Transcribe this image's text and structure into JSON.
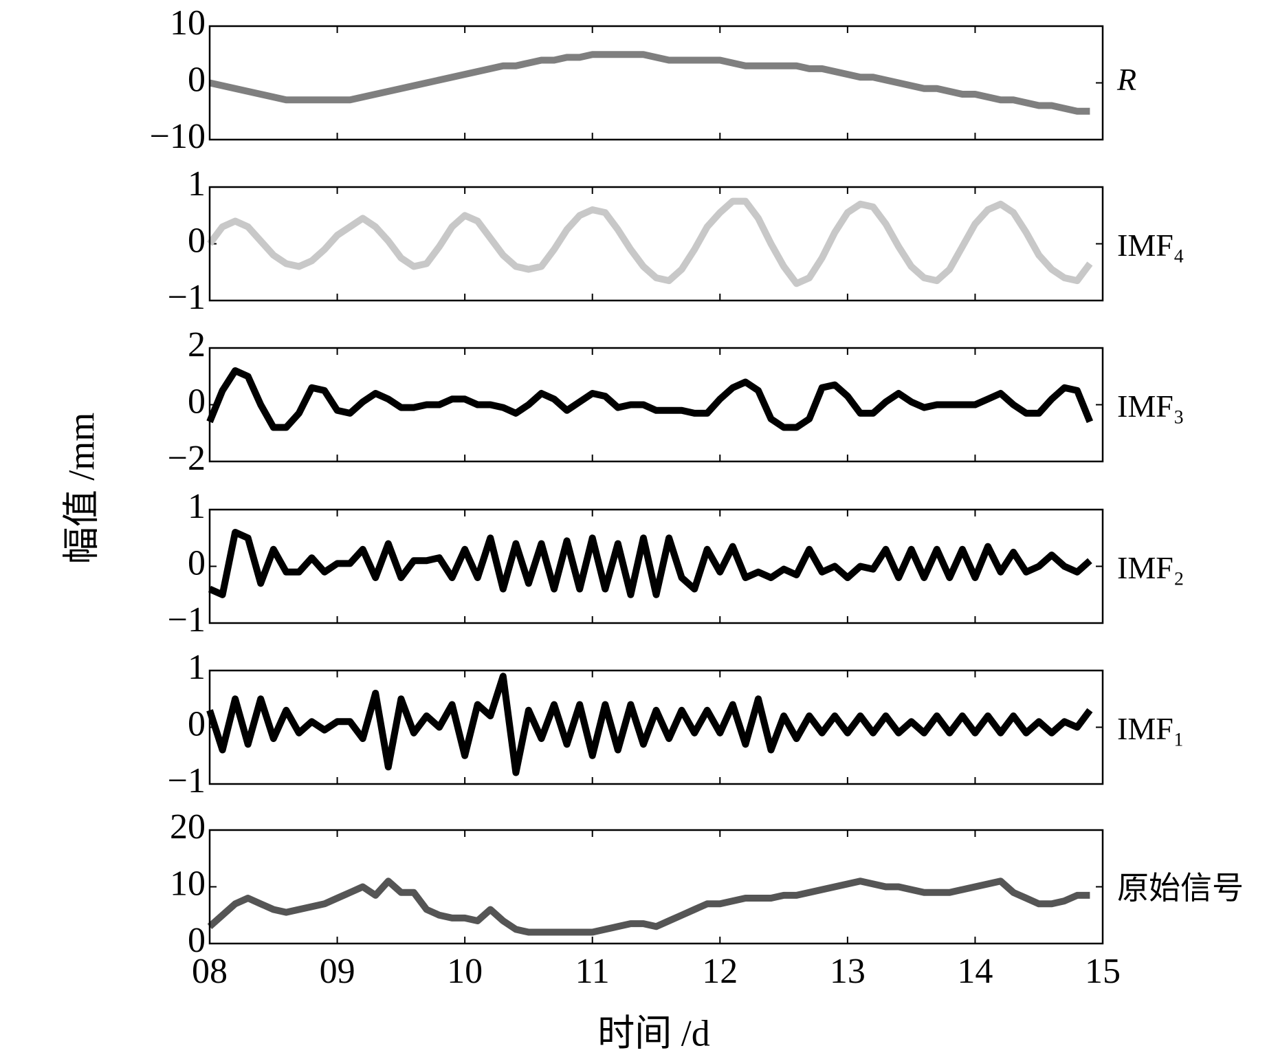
{
  "ylabel": "幅值 /mm",
  "xlabel": "时间 /d",
  "chart_data": [
    {
      "type": "line",
      "label": "R",
      "color": "#7f7f7f",
      "xlim": [
        8,
        15
      ],
      "ylim": [
        -10,
        10
      ],
      "yticks": [
        {
          "value": -10,
          "label": "−10"
        },
        0,
        10
      ],
      "x": [
        8,
        8.1,
        8.2,
        8.3,
        8.4,
        8.5,
        8.6,
        8.7,
        8.8,
        8.9,
        9,
        9.1,
        9.2,
        9.3,
        9.4,
        9.5,
        9.6,
        9.7,
        9.8,
        9.9,
        10,
        10.1,
        10.2,
        10.3,
        10.4,
        10.5,
        10.6,
        10.7,
        10.8,
        10.9,
        11,
        11.1,
        11.2,
        11.3,
        11.4,
        11.5,
        11.6,
        11.7,
        11.8,
        11.9,
        12,
        12.1,
        12.2,
        12.3,
        12.4,
        12.5,
        12.6,
        12.7,
        12.8,
        12.9,
        13,
        13.1,
        13.2,
        13.3,
        13.4,
        13.5,
        13.6,
        13.7,
        13.8,
        13.9,
        14,
        14.1,
        14.2,
        14.3,
        14.4,
        14.5,
        14.6,
        14.7,
        14.8,
        14.9
      ],
      "values": [
        0,
        -0.5,
        -1,
        -1.5,
        -2,
        -2.5,
        -3,
        -3,
        -3,
        -3,
        -3,
        -3,
        -2.5,
        -2,
        -1.5,
        -1,
        -0.5,
        0,
        0.5,
        1,
        1.5,
        2,
        2.5,
        3,
        3,
        3.5,
        4,
        4,
        4.5,
        4.5,
        5,
        5,
        5,
        5,
        5,
        4.5,
        4,
        4,
        4,
        4,
        4,
        3.5,
        3,
        3,
        3,
        3,
        3,
        2.5,
        2.5,
        2,
        1.5,
        1,
        1,
        0.5,
        0,
        -0.5,
        -1,
        -1,
        -1.5,
        -2,
        -2,
        -2.5,
        -3,
        -3,
        -3.5,
        -4,
        -4,
        -4.5,
        -5,
        -5
      ]
    },
    {
      "type": "line",
      "label": "IMF₄",
      "color": "#c8c8c8",
      "xlim": [
        8,
        15
      ],
      "ylim": [
        -1,
        1
      ],
      "yticks": [
        {
          "value": -1,
          "label": "−1"
        },
        0,
        1
      ],
      "x": [
        8,
        8.1,
        8.2,
        8.3,
        8.4,
        8.5,
        8.6,
        8.7,
        8.8,
        8.9,
        9,
        9.1,
        9.2,
        9.3,
        9.4,
        9.5,
        9.6,
        9.7,
        9.8,
        9.9,
        10,
        10.1,
        10.2,
        10.3,
        10.4,
        10.5,
        10.6,
        10.7,
        10.8,
        10.9,
        11,
        11.1,
        11.2,
        11.3,
        11.4,
        11.5,
        11.6,
        11.7,
        11.8,
        11.9,
        12,
        12.1,
        12.2,
        12.3,
        12.4,
        12.5,
        12.6,
        12.7,
        12.8,
        12.9,
        13,
        13.1,
        13.2,
        13.3,
        13.4,
        13.5,
        13.6,
        13.7,
        13.8,
        13.9,
        14,
        14.1,
        14.2,
        14.3,
        14.4,
        14.5,
        14.6,
        14.7,
        14.8,
        14.9
      ],
      "values": [
        0,
        0.3,
        0.4,
        0.3,
        0.05,
        -0.2,
        -0.35,
        -0.4,
        -0.3,
        -0.1,
        0.15,
        0.3,
        0.45,
        0.3,
        0.05,
        -0.25,
        -0.4,
        -0.35,
        -0.05,
        0.3,
        0.5,
        0.4,
        0.1,
        -0.2,
        -0.4,
        -0.45,
        -0.4,
        -0.1,
        0.25,
        0.5,
        0.6,
        0.55,
        0.25,
        -0.1,
        -0.4,
        -0.6,
        -0.65,
        -0.45,
        -0.1,
        0.3,
        0.55,
        0.75,
        0.75,
        0.45,
        0,
        -0.4,
        -0.7,
        -0.6,
        -0.25,
        0.2,
        0.55,
        0.7,
        0.65,
        0.35,
        -0.05,
        -0.4,
        -0.6,
        -0.65,
        -0.45,
        -0.05,
        0.35,
        0.6,
        0.7,
        0.55,
        0.2,
        -0.2,
        -0.45,
        -0.6,
        -0.65,
        -0.35
      ]
    },
    {
      "type": "line",
      "label": "IMF₃",
      "color": "#000000",
      "xlim": [
        8,
        15
      ],
      "ylim": [
        -2,
        2
      ],
      "yticks": [
        {
          "value": -2,
          "label": "−2"
        },
        0,
        2
      ],
      "x": [
        8,
        8.1,
        8.2,
        8.3,
        8.4,
        8.5,
        8.6,
        8.7,
        8.8,
        8.9,
        9,
        9.1,
        9.2,
        9.3,
        9.4,
        9.5,
        9.6,
        9.7,
        9.8,
        9.9,
        10,
        10.1,
        10.2,
        10.3,
        10.4,
        10.5,
        10.6,
        10.7,
        10.8,
        10.9,
        11,
        11.1,
        11.2,
        11.3,
        11.4,
        11.5,
        11.6,
        11.7,
        11.8,
        11.9,
        12,
        12.1,
        12.2,
        12.3,
        12.4,
        12.5,
        12.6,
        12.7,
        12.8,
        12.9,
        13,
        13.1,
        13.2,
        13.3,
        13.4,
        13.5,
        13.6,
        13.7,
        13.8,
        13.9,
        14,
        14.1,
        14.2,
        14.3,
        14.4,
        14.5,
        14.6,
        14.7,
        14.8,
        14.9
      ],
      "values": [
        -0.6,
        0.5,
        1.2,
        1,
        0,
        -0.8,
        -0.8,
        -0.3,
        0.6,
        0.5,
        -0.2,
        -0.3,
        0.1,
        0.4,
        0.2,
        -0.1,
        -0.1,
        0,
        0,
        0.2,
        0.2,
        0,
        0,
        -0.1,
        -0.3,
        0,
        0.4,
        0.2,
        -0.2,
        0.1,
        0.4,
        0.3,
        -0.1,
        0,
        0,
        -0.2,
        -0.2,
        -0.2,
        -0.3,
        -0.3,
        0.2,
        0.6,
        0.8,
        0.5,
        -0.5,
        -0.8,
        -0.8,
        -0.5,
        0.6,
        0.7,
        0.3,
        -0.3,
        -0.3,
        0.1,
        0.4,
        0.1,
        -0.1,
        0,
        0,
        0,
        0,
        0.2,
        0.4,
        0,
        -0.3,
        -0.3,
        0.2,
        0.6,
        0.5,
        -0.6
      ]
    },
    {
      "type": "line",
      "label": "IMF₂",
      "color": "#000000",
      "xlim": [
        8,
        15
      ],
      "ylim": [
        -1,
        1
      ],
      "yticks": [
        {
          "value": -1,
          "label": "−1"
        },
        0,
        1
      ],
      "x": [
        8,
        8.1,
        8.2,
        8.3,
        8.4,
        8.5,
        8.6,
        8.7,
        8.8,
        8.9,
        9,
        9.1,
        9.2,
        9.3,
        9.4,
        9.5,
        9.6,
        9.7,
        9.8,
        9.9,
        10,
        10.1,
        10.2,
        10.3,
        10.4,
        10.5,
        10.6,
        10.7,
        10.8,
        10.9,
        11,
        11.1,
        11.2,
        11.3,
        11.4,
        11.5,
        11.6,
        11.7,
        11.8,
        11.9,
        12,
        12.1,
        12.2,
        12.3,
        12.4,
        12.5,
        12.6,
        12.7,
        12.8,
        12.9,
        13,
        13.1,
        13.2,
        13.3,
        13.4,
        13.5,
        13.6,
        13.7,
        13.8,
        13.9,
        14,
        14.1,
        14.2,
        14.3,
        14.4,
        14.5,
        14.6,
        14.7,
        14.8,
        14.9
      ],
      "values": [
        -0.4,
        -0.5,
        0.6,
        0.5,
        -0.3,
        0.3,
        -0.1,
        -0.1,
        0.15,
        -0.1,
        0.05,
        0.05,
        0.3,
        -0.2,
        0.4,
        -0.2,
        0.1,
        0.1,
        0.15,
        -0.2,
        0.3,
        -0.2,
        0.5,
        -0.4,
        0.4,
        -0.3,
        0.4,
        -0.4,
        0.45,
        -0.4,
        0.5,
        -0.4,
        0.4,
        -0.5,
        0.5,
        -0.5,
        0.5,
        -0.2,
        -0.4,
        0.3,
        -0.1,
        0.35,
        -0.2,
        -0.1,
        -0.2,
        -0.05,
        -0.15,
        0.3,
        -0.1,
        0,
        -0.2,
        0,
        -0.05,
        0.3,
        -0.2,
        0.3,
        -0.2,
        0.3,
        -0.2,
        0.3,
        -0.2,
        0.35,
        -0.1,
        0.25,
        -0.1,
        0,
        0.2,
        0,
        -0.1,
        0.1
      ]
    },
    {
      "type": "line",
      "label": "IMF₁",
      "color": "#000000",
      "xlim": [
        8,
        15
      ],
      "ylim": [
        -1,
        1
      ],
      "yticks": [
        {
          "value": -1,
          "label": "−1"
        },
        0,
        1
      ],
      "x": [
        8,
        8.1,
        8.2,
        8.3,
        8.4,
        8.5,
        8.6,
        8.7,
        8.8,
        8.9,
        9,
        9.1,
        9.2,
        9.3,
        9.4,
        9.5,
        9.6,
        9.7,
        9.8,
        9.9,
        10,
        10.1,
        10.2,
        10.3,
        10.4,
        10.5,
        10.6,
        10.7,
        10.8,
        10.9,
        11,
        11.1,
        11.2,
        11.3,
        11.4,
        11.5,
        11.6,
        11.7,
        11.8,
        11.9,
        12,
        12.1,
        12.2,
        12.3,
        12.4,
        12.5,
        12.6,
        12.7,
        12.8,
        12.9,
        13,
        13.1,
        13.2,
        13.3,
        13.4,
        13.5,
        13.6,
        13.7,
        13.8,
        13.9,
        14,
        14.1,
        14.2,
        14.3,
        14.4,
        14.5,
        14.6,
        14.7,
        14.8,
        14.9
      ],
      "values": [
        0.3,
        -0.4,
        0.5,
        -0.3,
        0.5,
        -0.2,
        0.3,
        -0.1,
        0.1,
        -0.05,
        0.1,
        0.1,
        -0.2,
        0.6,
        -0.7,
        0.5,
        -0.1,
        0.2,
        0,
        0.4,
        -0.5,
        0.4,
        0.2,
        0.9,
        -0.8,
        0.3,
        -0.2,
        0.4,
        -0.3,
        0.4,
        -0.5,
        0.4,
        -0.4,
        0.4,
        -0.3,
        0.3,
        -0.2,
        0.3,
        -0.1,
        0.3,
        -0.1,
        0.4,
        -0.3,
        0.5,
        -0.4,
        0.2,
        -0.2,
        0.2,
        -0.1,
        0.2,
        -0.1,
        0.2,
        -0.1,
        0.2,
        -0.1,
        0.1,
        -0.1,
        0.2,
        -0.1,
        0.2,
        -0.1,
        0.2,
        -0.1,
        0.2,
        -0.1,
        0.1,
        -0.1,
        0.1,
        0,
        0.3
      ]
    },
    {
      "type": "line",
      "label": "原始信号",
      "color": "#555555",
      "xlim": [
        8,
        15
      ],
      "ylim": [
        0,
        20
      ],
      "yticks": [
        0,
        10,
        20
      ],
      "xticks": [
        {
          "value": 8,
          "label": "08"
        },
        {
          "value": 9,
          "label": "09"
        },
        10,
        11,
        12,
        13,
        14,
        15
      ],
      "x": [
        8,
        8.1,
        8.2,
        8.3,
        8.4,
        8.5,
        8.6,
        8.7,
        8.8,
        8.9,
        9,
        9.1,
        9.2,
        9.3,
        9.4,
        9.5,
        9.6,
        9.7,
        9.8,
        9.9,
        10,
        10.1,
        10.2,
        10.3,
        10.4,
        10.5,
        10.6,
        10.7,
        10.8,
        10.9,
        11,
        11.1,
        11.2,
        11.3,
        11.4,
        11.5,
        11.6,
        11.7,
        11.8,
        11.9,
        12,
        12.1,
        12.2,
        12.3,
        12.4,
        12.5,
        12.6,
        12.7,
        12.8,
        12.9,
        13,
        13.1,
        13.2,
        13.3,
        13.4,
        13.5,
        13.6,
        13.7,
        13.8,
        13.9,
        14,
        14.1,
        14.2,
        14.3,
        14.4,
        14.5,
        14.6,
        14.7,
        14.8,
        14.9
      ],
      "values": [
        3,
        5,
        7,
        8,
        7,
        6,
        5.5,
        6,
        6.5,
        7,
        8,
        9,
        10,
        8.5,
        11,
        9,
        9,
        6,
        5,
        4.5,
        4.5,
        4,
        6,
        4,
        2.5,
        2,
        2,
        2,
        2,
        2,
        2,
        2.5,
        3,
        3.5,
        3.5,
        3,
        4,
        5,
        6,
        7,
        7,
        7.5,
        8,
        8,
        8,
        8.5,
        8.5,
        9,
        9.5,
        10,
        10.5,
        11,
        10.5,
        10,
        10,
        9.5,
        9,
        9,
        9,
        9.5,
        10,
        10.5,
        11,
        9,
        8,
        7,
        7,
        7.5,
        8.5,
        8.5
      ]
    }
  ]
}
